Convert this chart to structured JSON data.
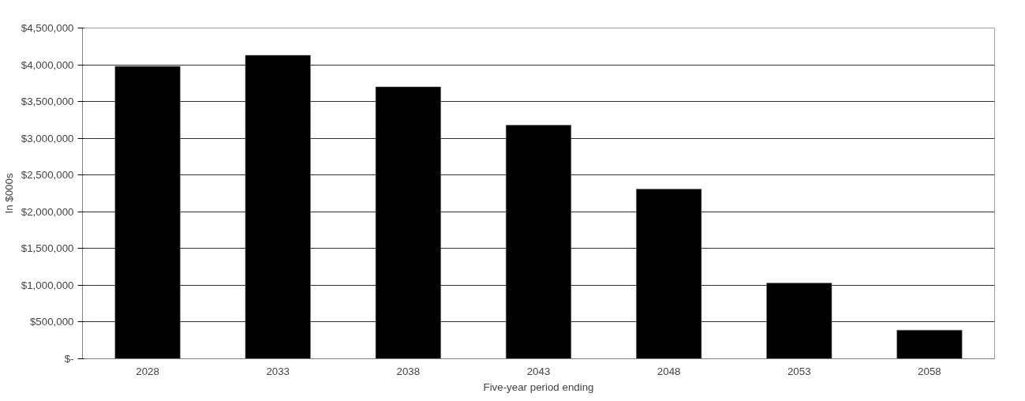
{
  "chart_data": {
    "type": "bar",
    "xlabel": "Five-year period ending",
    "ylabel": "In $000s",
    "categories": [
      "2028",
      "2033",
      "2038",
      "2043",
      "2048",
      "2053",
      "2058"
    ],
    "values": [
      3980000,
      4130000,
      3700000,
      3180000,
      2310000,
      1030000,
      390000
    ],
    "color": "#000000",
    "ylim": [
      0,
      4500000
    ],
    "yticks": [
      {
        "value": 0,
        "label": "$-"
      },
      {
        "value": 500000,
        "label": "$500,000"
      },
      {
        "value": 1000000,
        "label": "$1,000,000"
      },
      {
        "value": 1500000,
        "label": "$1,500,000"
      },
      {
        "value": 2000000,
        "label": "$2,000,000"
      },
      {
        "value": 2500000,
        "label": "$2,500,000"
      },
      {
        "value": 3000000,
        "label": "$3,000,000"
      },
      {
        "value": 3500000,
        "label": "$3,500,000"
      },
      {
        "value": 4000000,
        "label": "$4,000,000"
      },
      {
        "value": 4500000,
        "label": "$4,500,000"
      }
    ],
    "grid": "y"
  }
}
